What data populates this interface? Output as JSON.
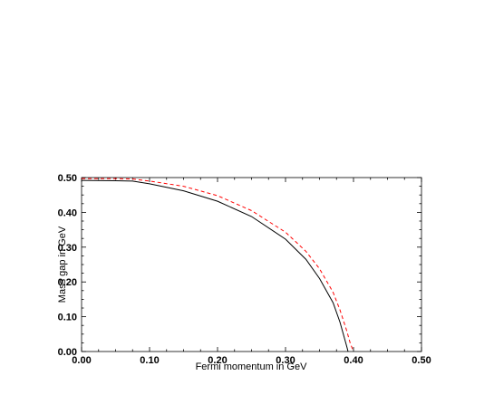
{
  "chart_data": {
    "type": "line",
    "xlabel": "Fermi momentum in GeV",
    "ylabel": "Mass gap in GeV",
    "xlim": [
      0.0,
      0.5
    ],
    "ylim": [
      0.0,
      0.5
    ],
    "x_ticks": [
      "0.00",
      "0.10",
      "0.20",
      "0.30",
      "0.40",
      "0.50"
    ],
    "y_ticks": [
      "0.00",
      "0.10",
      "0.20",
      "0.30",
      "0.40",
      "0.50"
    ],
    "grid": false,
    "series": [
      {
        "style": "solid",
        "color": "#000000",
        "x": [
          0.0,
          0.05,
          0.075,
          0.1,
          0.15,
          0.2,
          0.25,
          0.3,
          0.33,
          0.35,
          0.37,
          0.38,
          0.385,
          0.39,
          0.392
        ],
        "y": [
          0.492,
          0.491,
          0.49,
          0.482,
          0.462,
          0.432,
          0.388,
          0.323,
          0.265,
          0.21,
          0.14,
          0.085,
          0.05,
          0.015,
          0.0
        ]
      },
      {
        "style": "dashed",
        "color": "#ff0000",
        "x": [
          0.0,
          0.05,
          0.075,
          0.1,
          0.15,
          0.2,
          0.25,
          0.3,
          0.33,
          0.35,
          0.37,
          0.38,
          0.39,
          0.395,
          0.4
        ],
        "y": [
          0.497,
          0.497,
          0.496,
          0.49,
          0.475,
          0.448,
          0.405,
          0.343,
          0.288,
          0.238,
          0.17,
          0.12,
          0.06,
          0.025,
          0.0
        ]
      }
    ]
  }
}
